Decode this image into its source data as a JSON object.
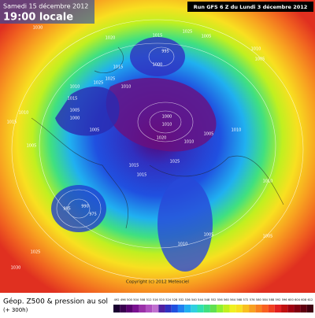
{
  "header": {
    "date": "Samedi 15 décembre 2012",
    "time": "19:00 locale",
    "run": "Run GFS 6 Z du Lundi 3 décembre 2012"
  },
  "footer": {
    "field": "Géop. Z500 & pression au sol",
    "lead": "(+ 300h)",
    "copyright": "Copyright (c) 2012 Meteociel"
  },
  "isobar_labels": [
    1030,
    1020,
    1025,
    1015,
    1005,
    995,
    1005,
    1000,
    1015,
    1010,
    1025,
    1010,
    1015,
    1005,
    1000,
    1010,
    1005,
    1015,
    1010,
    1025,
    1000,
    1010,
    1020,
    1010,
    1005,
    985,
    990,
    975,
    1015,
    1015,
    1025,
    1005,
    1010,
    1010,
    1005,
    1010,
    1025,
    1030,
    1005
  ],
  "legend": {
    "ticks": [
      492,
      496,
      500,
      504,
      508,
      512,
      516,
      520,
      524,
      528,
      532,
      536,
      540,
      544,
      548,
      552,
      556,
      560,
      564,
      568,
      572,
      576,
      580,
      584,
      588,
      592,
      596,
      600,
      604,
      608,
      612
    ],
    "colors": [
      "#1a0030",
      "#3a0050",
      "#5a0070",
      "#7a1090",
      "#9a30a8",
      "#b050c0",
      "#c070d0",
      "#5020a0",
      "#3030c0",
      "#2050e0",
      "#2080f0",
      "#20b0f0",
      "#30d0e0",
      "#30e0b0",
      "#40e080",
      "#60e050",
      "#90f030",
      "#c0f020",
      "#f0f020",
      "#f8e020",
      "#f8c020",
      "#f8a020",
      "#f88020",
      "#f86020",
      "#f04020",
      "#e02020",
      "#c01010",
      "#a00010",
      "#800010",
      "#600010",
      "#400010"
    ]
  }
}
